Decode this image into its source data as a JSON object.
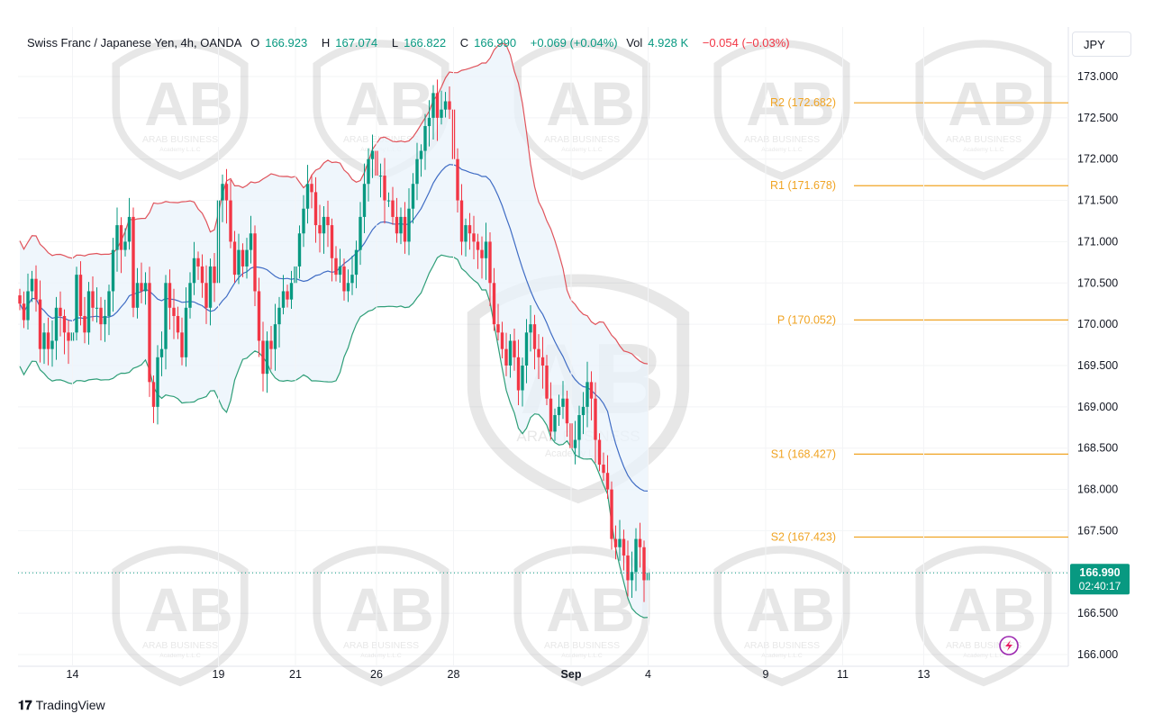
{
  "legend": {
    "symbol": "Swiss Franc / Japanese Yen, 4h, OANDA",
    "o_label": "O",
    "o": "166.923",
    "h_label": "H",
    "h": "167.074",
    "l_label": "L",
    "l": "166.822",
    "c_label": "C",
    "c": "166.990",
    "change": "+0.069 (+0.04%)",
    "vol_label": "Vol",
    "vol": "4.928 K",
    "vol_change": "−0.054 (−0.03%)"
  },
  "currency": "JPY",
  "brand": "TradingView",
  "colors": {
    "up": "#089981",
    "down": "#f23645",
    "upper_band": "#e0545c",
    "basis": "#3f6cc4",
    "lower_band": "#2e9e78",
    "pivot": "#f0a424",
    "band_fill": "#eaf3fb",
    "price_tag": "#089981"
  },
  "chart_data": {
    "type": "candlestick",
    "y_range": [
      165.8,
      173.4
    ],
    "y_ticks": [
      "173.000",
      "172.500",
      "172.000",
      "171.500",
      "171.000",
      "170.500",
      "170.000",
      "169.500",
      "169.000",
      "168.500",
      "168.000",
      "167.500",
      "167.000",
      "166.500",
      "166.000"
    ],
    "x_ticks": [
      {
        "label": "14",
        "bar": 13
      },
      {
        "label": "19",
        "bar": 49
      },
      {
        "label": "21",
        "bar": 68
      },
      {
        "label": "26",
        "bar": 88
      },
      {
        "label": "28",
        "bar": 107
      },
      {
        "label": "Sep",
        "bar": 136,
        "bold": true
      },
      {
        "label": "4",
        "bar": 155
      },
      {
        "label": "9",
        "bar": 184
      },
      {
        "label": "11",
        "bar": 203
      },
      {
        "label": "13",
        "bar": 223
      }
    ],
    "candles_close": [
      170.25,
      170.05,
      170.4,
      170.55,
      170.3,
      169.7,
      169.9,
      169.7,
      169.8,
      170.2,
      170.1,
      169.9,
      169.8,
      169.9,
      170.6,
      170.1,
      169.9,
      170.4,
      170.2,
      170.2,
      170.0,
      170.1,
      170.4,
      170.9,
      171.2,
      170.9,
      171.0,
      171.3,
      170.2,
      170.5,
      170.4,
      170.5,
      169.3,
      169.0,
      169.6,
      169.7,
      170.5,
      170.2,
      170.1,
      169.9,
      169.6,
      170.2,
      170.5,
      170.8,
      170.7,
      170.5,
      170.2,
      170.7,
      170.5,
      171.5,
      171.7,
      171.5,
      171.0,
      170.6,
      170.9,
      170.7,
      170.9,
      171.1,
      170.4,
      169.8,
      169.4,
      169.8,
      169.7,
      170.0,
      170.2,
      170.4,
      170.3,
      170.5,
      170.7,
      171.1,
      171.4,
      171.7,
      171.6,
      171.2,
      171.1,
      171.3,
      171.2,
      170.8,
      170.6,
      170.7,
      170.4,
      170.5,
      170.6,
      170.9,
      171.3,
      171.7,
      172.0,
      172.1,
      171.8,
      171.8,
      171.5,
      171.5,
      171.3,
      171.1,
      171.3,
      171.0,
      171.4,
      171.7,
      172.0,
      172.1,
      172.4,
      172.5,
      172.8,
      172.5,
      172.6,
      172.7,
      172.6,
      172.0,
      171.5,
      171.0,
      171.2,
      171.1,
      171.0,
      170.9,
      170.8,
      171.0,
      170.5,
      170.0,
      169.9,
      169.7,
      169.5,
      169.8,
      169.6,
      169.2,
      169.5,
      169.9,
      170.0,
      169.7,
      169.6,
      169.5,
      169.1,
      168.7,
      168.9,
      169.0,
      169.1,
      168.8,
      168.5,
      168.6,
      168.9,
      169.0,
      169.3,
      169.1,
      168.6,
      168.3,
      168.2,
      168.0,
      167.4,
      167.3,
      167.4,
      167.2,
      166.9,
      167.0,
      167.4,
      167.3,
      166.9,
      166.99
    ],
    "bands": {
      "upper_end": 169.52,
      "basis_end": 167.98,
      "lower_end": 166.45
    },
    "pivots": [
      {
        "label": "R2 (172.682)",
        "value": 172.682
      },
      {
        "label": "R1 (171.678)",
        "value": 171.678
      },
      {
        "label": "P (170.052)",
        "value": 170.052
      },
      {
        "label": "S1 (168.427)",
        "value": 168.427
      },
      {
        "label": "S2 (167.423)",
        "value": 167.423
      }
    ],
    "last_price": {
      "value": 166.99,
      "label": "166.990",
      "countdown": "02:40:17"
    }
  },
  "watermark": {
    "line1": "ARAB BUSINESS",
    "line2": "Academy L.L.C"
  }
}
